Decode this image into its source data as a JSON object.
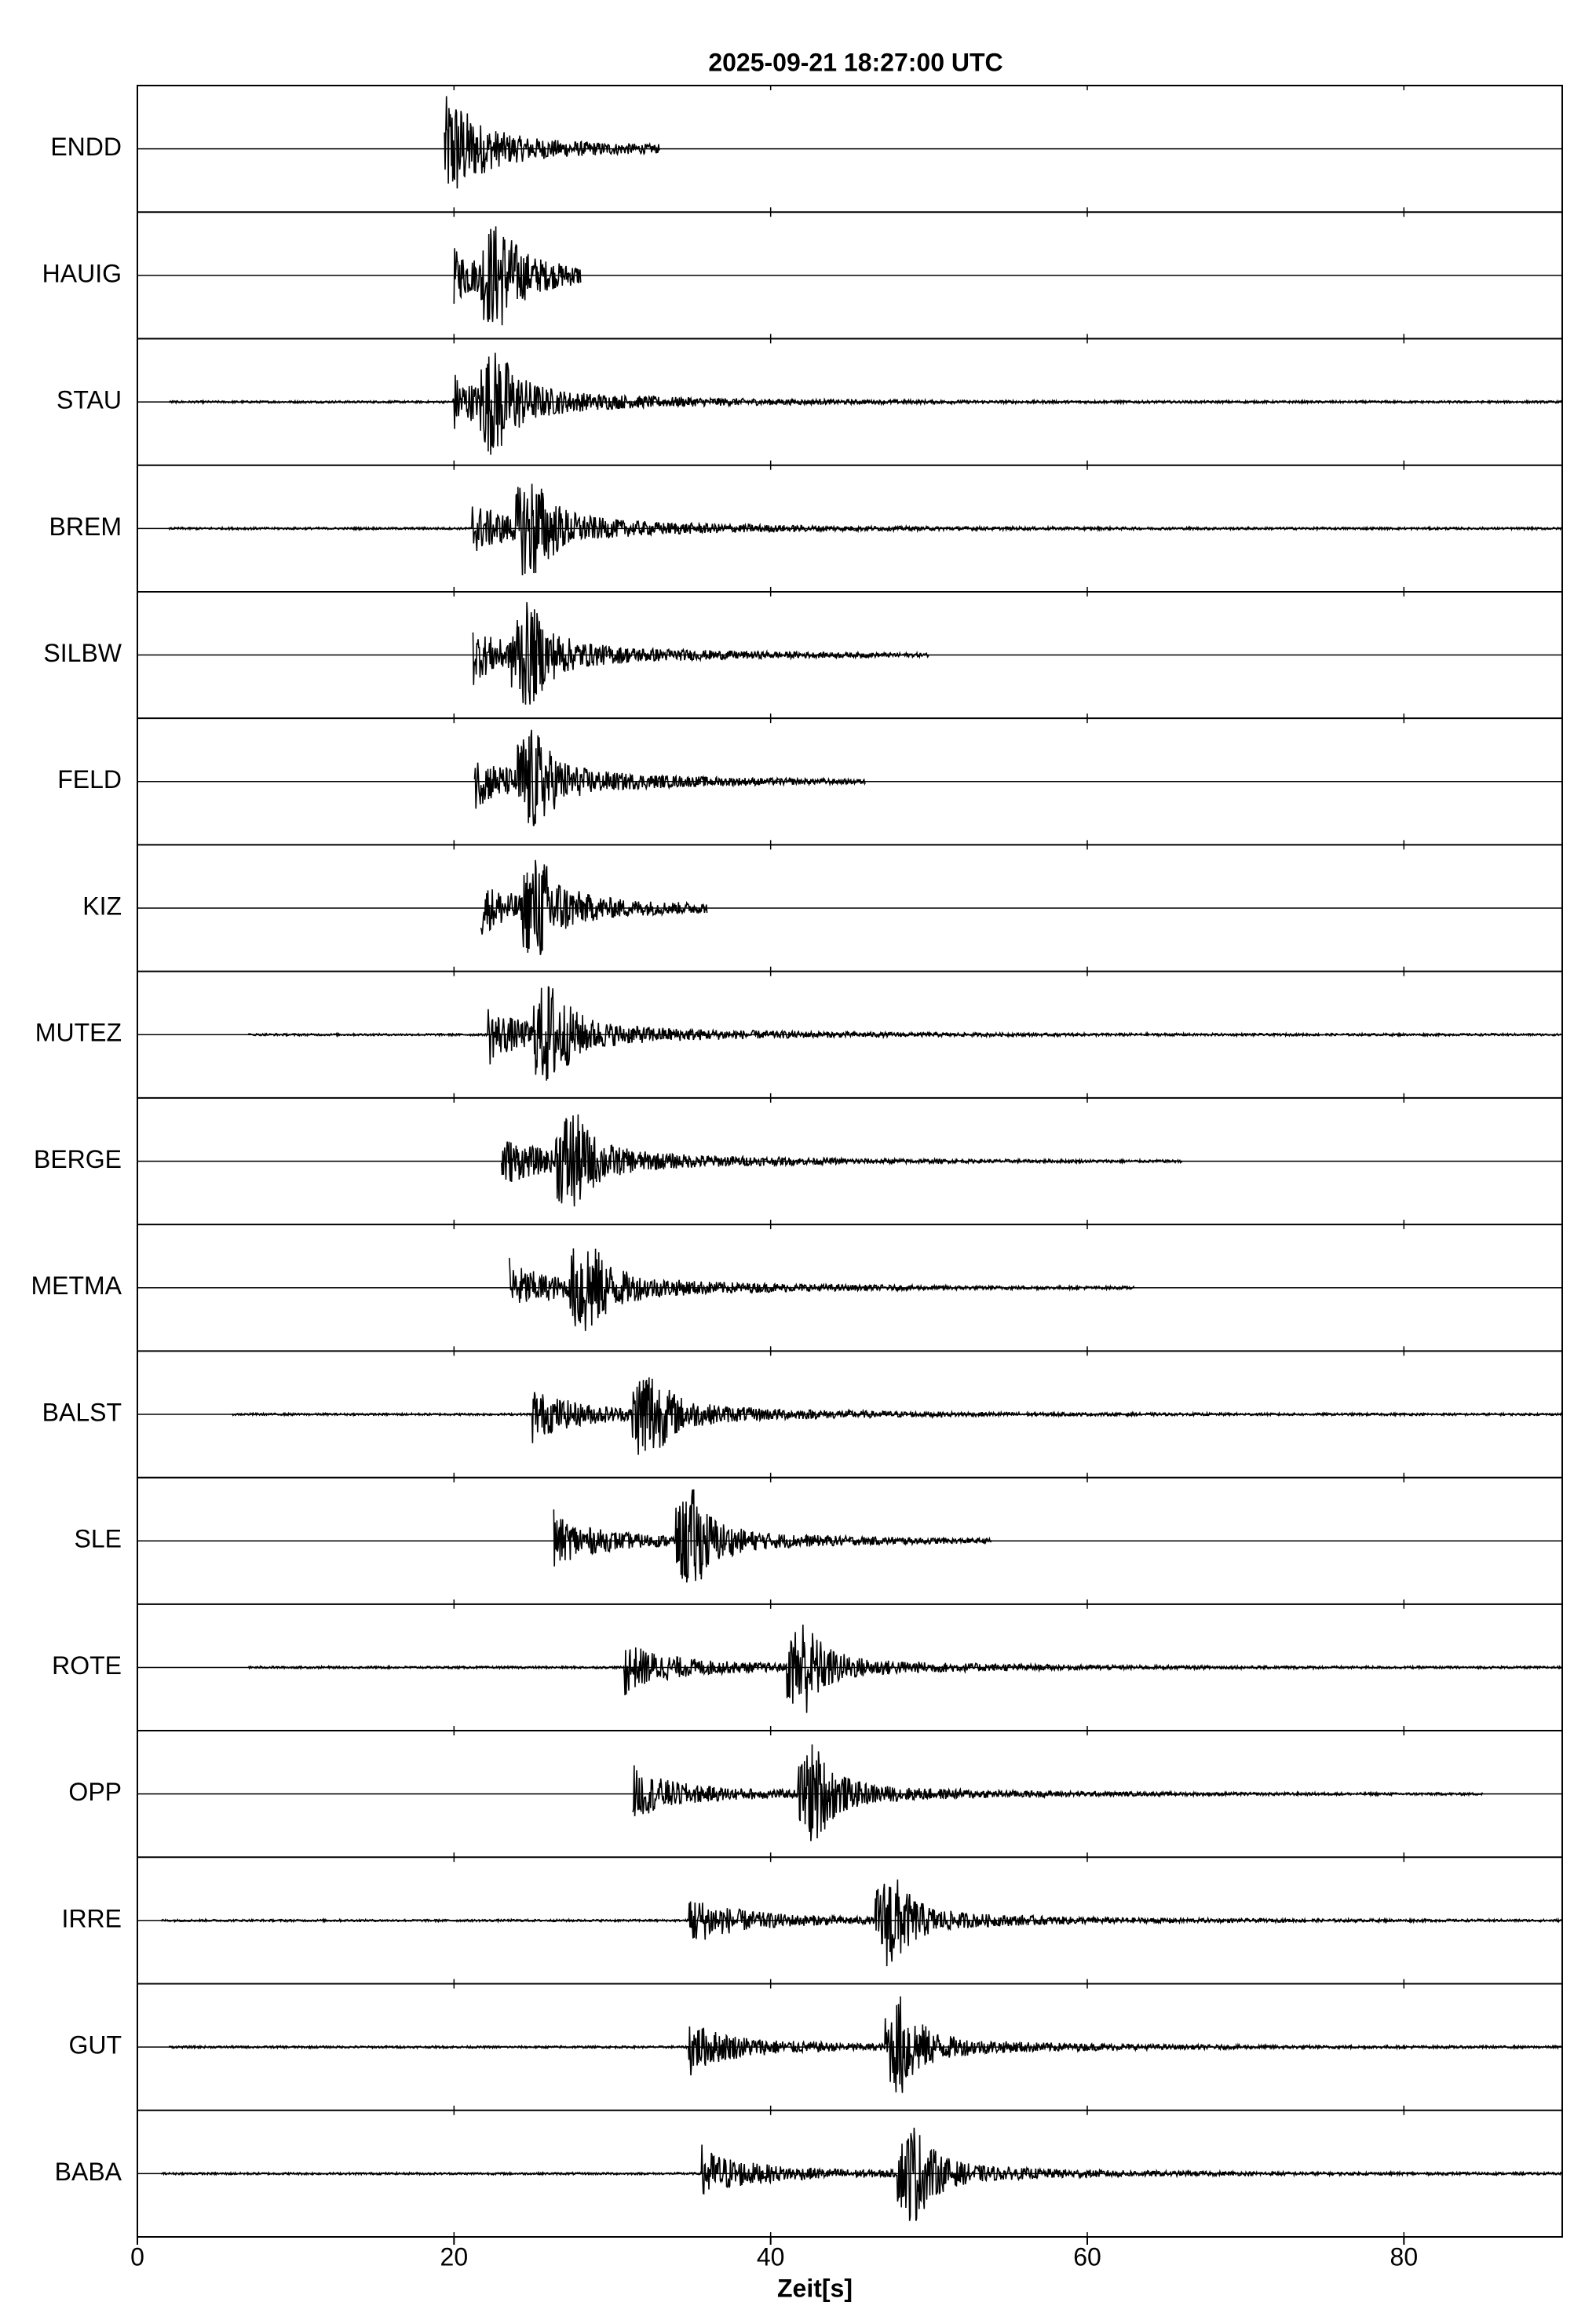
{
  "chart_data": {
    "type": "seismogram",
    "title": "2025-09-21  18:27:00 UTC",
    "x_label": "Zeit[s]",
    "xlim": [
      0,
      90
    ],
    "xticks": [
      0,
      20,
      40,
      60,
      80
    ],
    "series": [
      {
        "name": "ENDD",
        "start": 19.4,
        "onset": 19.4,
        "peak": 19.4,
        "end": 33
      },
      {
        "name": "HAUIG",
        "start": 20,
        "onset": 20,
        "peak": 22.7,
        "end": 28
      },
      {
        "name": "STAU",
        "start": 2,
        "onset": 20,
        "peak": 22.6,
        "end": 90
      },
      {
        "name": "BREM",
        "start": 2,
        "onset": 21.2,
        "peak": 24.9,
        "end": 90
      },
      {
        "name": "SILBW",
        "start": 21.2,
        "onset": 21.2,
        "peak": 24.6,
        "end": 50
      },
      {
        "name": "FELD",
        "start": 21.3,
        "onset": 21.3,
        "peak": 24.9,
        "end": 46
      },
      {
        "name": "KIZ",
        "start": 21.7,
        "onset": 21.7,
        "peak": 25.3,
        "end": 36
      },
      {
        "name": "MUTEZ",
        "start": 7,
        "onset": 22.2,
        "peak": 26,
        "end": 90
      },
      {
        "name": "BERGE",
        "start": 23,
        "onset": 23,
        "peak": 27.4,
        "end": 66
      },
      {
        "name": "METMA",
        "start": 23.5,
        "onset": 23.5,
        "peak": 28.3,
        "end": 63
      },
      {
        "name": "BALST",
        "start": 6,
        "onset": 25,
        "peak": 32.2,
        "end": 90
      },
      {
        "name": "SLE",
        "start": 26.3,
        "onset": 26.3,
        "peak": 35,
        "end": 54
      },
      {
        "name": "ROTE",
        "start": 7,
        "onset": 30.8,
        "peak": 42,
        "end": 90
      },
      {
        "name": "OPP",
        "start": 31.3,
        "onset": 31.3,
        "peak": 42.7,
        "end": 85
      },
      {
        "name": "IRRE",
        "start": 1.5,
        "onset": 34.9,
        "peak": 47.6,
        "end": 90
      },
      {
        "name": "GUT",
        "start": 2,
        "onset": 34.9,
        "peak": 48.2,
        "end": 90
      },
      {
        "name": "BABA",
        "start": 1.5,
        "onset": 35.7,
        "peak": 49,
        "end": 90
      }
    ]
  }
}
